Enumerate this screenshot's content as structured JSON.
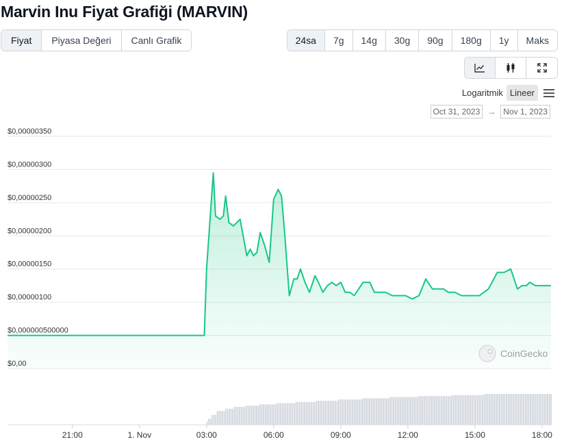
{
  "title": "Marvin Inu Fiyat Grafiği (MARVIN)",
  "tabs": [
    "Fiyat",
    "Piyasa Değeri",
    "Canlı Grafik"
  ],
  "active_tab": "Fiyat",
  "ranges": [
    "24sa",
    "7g",
    "14g",
    "30g",
    "90g",
    "180g",
    "1y",
    "Maks"
  ],
  "active_range": "24sa",
  "chart_type_icons": [
    "line-chart-icon",
    "candlestick-icon",
    "fullscreen-icon"
  ],
  "scale": {
    "log": "Logaritmik",
    "linear": "Lineer",
    "active": "linear"
  },
  "date_range": {
    "from": "Oct 31, 2023",
    "arrow": "→",
    "to": "Nov 1, 2023"
  },
  "watermark": "CoinGecko",
  "colors": {
    "line": "#16c784",
    "fill_top": "#16c784",
    "volume": "#c7ccd6",
    "grid": "#e6e6e6"
  },
  "chart_data": {
    "type": "area",
    "title": "",
    "xlabel": "",
    "ylabel": "",
    "x_ticks": [
      "21:00",
      "1. Nov",
      "03:00",
      "06:00",
      "09:00",
      "12:00",
      "15:00",
      "18:00"
    ],
    "x_tick_hours": [
      21,
      24,
      27,
      30,
      33,
      36,
      39,
      42
    ],
    "y_ticks": [
      {
        "label": "$0,00000350",
        "value": 3.5
      },
      {
        "label": "$0,00000300",
        "value": 3.0
      },
      {
        "label": "$0,00000250",
        "value": 2.5
      },
      {
        "label": "$0,00000200",
        "value": 2.0
      },
      {
        "label": "$0,00000150",
        "value": 1.5
      },
      {
        "label": "$0,00000100",
        "value": 1.0
      },
      {
        "label": "$0,000000500000",
        "value": 0.5
      },
      {
        "label": "$0,00",
        "value": 0.0
      }
    ],
    "y_unit": "1e-6 USD",
    "ylim": [
      0,
      3.5
    ],
    "xlim_hours": [
      18.1,
      42.4
    ],
    "grid": true,
    "series": [
      {
        "x_hours": [
          18.1,
          26.9,
          27.0,
          27.3,
          27.4,
          27.6,
          27.75,
          27.85,
          28.0,
          28.2,
          28.5,
          28.8,
          28.95,
          29.1,
          29.25,
          29.4,
          29.6,
          29.8,
          30.0,
          30.2,
          30.35,
          30.5,
          30.6,
          30.7,
          30.9,
          31.05,
          31.2,
          31.4,
          31.6,
          31.85,
          32.0,
          32.2,
          32.4,
          32.6,
          32.8,
          33.0,
          33.2,
          33.4,
          33.6,
          33.8,
          34.0,
          34.3,
          34.5,
          34.75,
          35.0,
          35.3,
          35.6,
          35.9,
          36.2,
          36.5,
          36.8,
          37.1,
          37.4,
          37.6,
          37.8,
          38.1,
          38.4,
          38.8,
          39.2,
          39.6,
          40.0,
          40.3,
          40.6,
          40.9,
          41.1,
          41.3,
          41.45,
          41.7,
          42.0,
          42.4
        ],
        "values": [
          0.5,
          0.5,
          1.5,
          2.95,
          2.3,
          2.25,
          2.3,
          2.6,
          2.2,
          2.15,
          2.25,
          1.7,
          1.8,
          1.7,
          1.75,
          2.05,
          1.85,
          1.6,
          2.55,
          2.7,
          2.6,
          2.0,
          1.55,
          1.1,
          1.35,
          1.35,
          1.5,
          1.3,
          1.15,
          1.4,
          1.3,
          1.15,
          1.25,
          1.3,
          1.25,
          1.3,
          1.15,
          1.15,
          1.1,
          1.2,
          1.3,
          1.3,
          1.15,
          1.15,
          1.15,
          1.1,
          1.1,
          1.1,
          1.05,
          1.1,
          1.35,
          1.2,
          1.2,
          1.2,
          1.15,
          1.15,
          1.1,
          1.1,
          1.1,
          1.2,
          1.45,
          1.45,
          1.5,
          1.2,
          1.25,
          1.25,
          1.3,
          1.25,
          1.25,
          1.25
        ]
      }
    ],
    "volume": {
      "start_hour": 27.0,
      "end_hour": 42.4,
      "relative_levels": [
        0.1,
        0.2,
        0.32,
        0.45,
        0.52,
        0.58,
        0.62,
        0.66,
        0.7,
        0.74,
        0.78,
        0.82,
        0.86,
        0.9,
        0.93,
        0.96,
        1.0
      ]
    }
  }
}
